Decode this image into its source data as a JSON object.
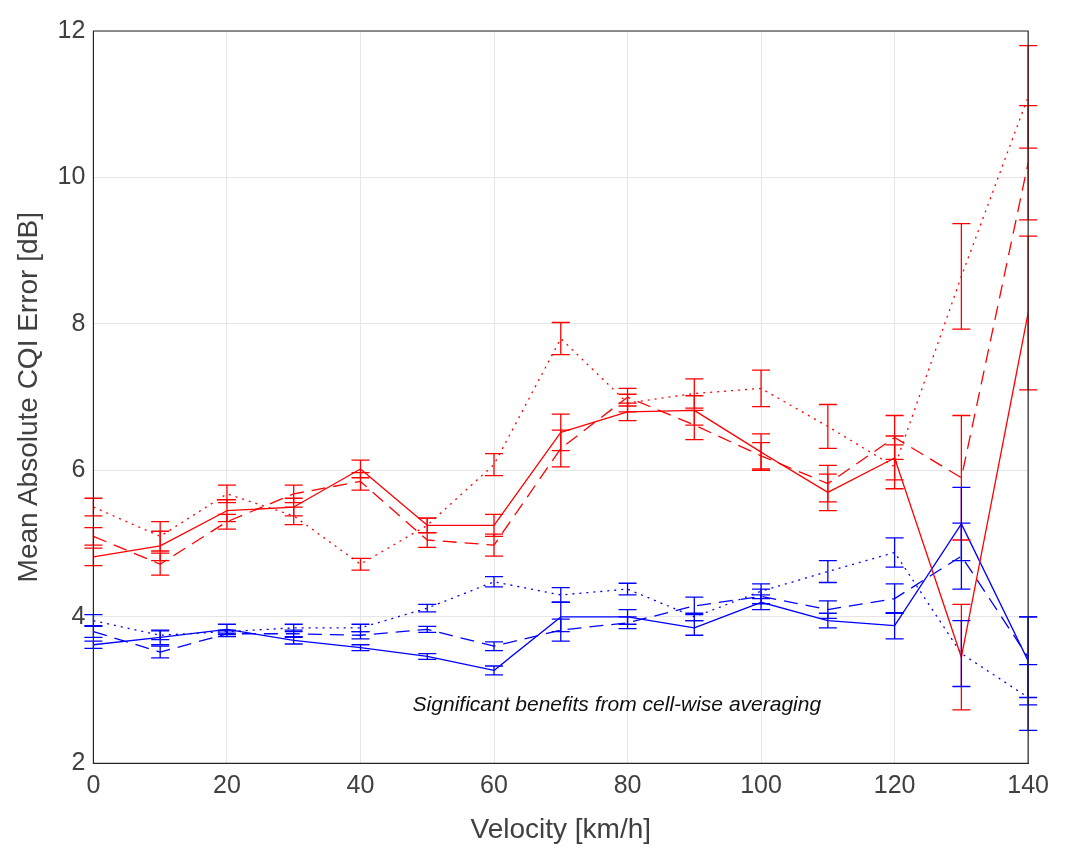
{
  "chart_data": {
    "type": "line",
    "xlabel": "Velocity [km/h]",
    "ylabel": "Mean Absolute CQI Error [dB]",
    "x": [
      0,
      10,
      20,
      30,
      40,
      50,
      60,
      70,
      80,
      90,
      100,
      110,
      120,
      130,
      140
    ],
    "xlim": [
      0,
      140
    ],
    "xticks": [
      0,
      20,
      40,
      60,
      80,
      100,
      120,
      140
    ],
    "ylim": [
      2,
      12
    ],
    "yticks": [
      2,
      4,
      6,
      8,
      10,
      12
    ],
    "grid": true,
    "legend": false,
    "marker": "none",
    "series": [
      {
        "color": "#ff0000",
        "line_style": "solid",
        "values": [
          4.82,
          4.97,
          5.45,
          5.5,
          6.02,
          5.25,
          5.25,
          6.52,
          6.8,
          6.82,
          6.25,
          5.7,
          6.17,
          3.45,
          8.15
        ],
        "errors": [
          0.12,
          0.2,
          0.15,
          0.12,
          0.12,
          0.1,
          0.15,
          0.25,
          0.12,
          0.2,
          0.25,
          0.25,
          0.3,
          0.72,
          1.05
        ]
      },
      {
        "color": "#ff0000",
        "line_style": "dashed",
        "values": [
          5.1,
          4.72,
          5.3,
          5.68,
          5.85,
          5.05,
          4.98,
          6.3,
          7.0,
          6.62,
          6.2,
          5.82,
          6.45,
          5.9,
          10.2
        ],
        "errors": [
          0.12,
          0.15,
          0.1,
          0.12,
          0.12,
          0.1,
          0.15,
          0.25,
          0.12,
          0.2,
          0.18,
          0.25,
          0.3,
          0.85,
          0.78
        ]
      },
      {
        "color": "#ff0000",
        "line_style": "dotted",
        "values": [
          5.5,
          5.1,
          5.68,
          5.38,
          4.72,
          5.25,
          6.08,
          7.8,
          6.92,
          7.05,
          7.12,
          6.6,
          6.05,
          8.65,
          11.1
        ],
        "errors": [
          0.12,
          0.2,
          0.12,
          0.12,
          0.08,
          0.1,
          0.15,
          0.22,
          0.12,
          0.2,
          0.25,
          0.3,
          0.3,
          0.72,
          0.7
        ]
      },
      {
        "color": "#0000ff",
        "line_style": "solid",
        "values": [
          3.62,
          3.72,
          3.83,
          3.68,
          3.58,
          3.46,
          3.27,
          4.0,
          4.0,
          3.85,
          4.2,
          3.95,
          3.88,
          5.27,
          3.4
        ],
        "errors": [
          0.05,
          0.1,
          0.07,
          0.05,
          0.04,
          0.04,
          0.06,
          0.2,
          0.1,
          0.1,
          0.1,
          0.1,
          0.18,
          0.5,
          0.6
        ]
      },
      {
        "color": "#0000ff",
        "line_style": "dashed",
        "values": [
          3.8,
          3.52,
          3.77,
          3.77,
          3.75,
          3.83,
          3.6,
          3.82,
          3.92,
          4.15,
          4.28,
          4.1,
          4.25,
          4.83,
          3.45
        ],
        "errors": [
          0.08,
          0.08,
          0.04,
          0.05,
          0.05,
          0.04,
          0.06,
          0.15,
          0.08,
          0.12,
          0.1,
          0.12,
          0.2,
          0.45,
          0.55
        ]
      },
      {
        "color": "#0000ff",
        "line_style": "dotted",
        "values": [
          3.95,
          3.75,
          3.8,
          3.85,
          3.85,
          4.12,
          4.48,
          4.3,
          4.38,
          4.0,
          4.35,
          4.62,
          4.88,
          3.5,
          2.9
        ],
        "errors": [
          0.08,
          0.06,
          0.02,
          0.05,
          0.05,
          0.05,
          0.07,
          0.1,
          0.08,
          0.05,
          0.1,
          0.15,
          0.2,
          0.45,
          0.45
        ]
      }
    ],
    "annotations": [
      "Significant benefits from cell-wise averaging"
    ]
  }
}
